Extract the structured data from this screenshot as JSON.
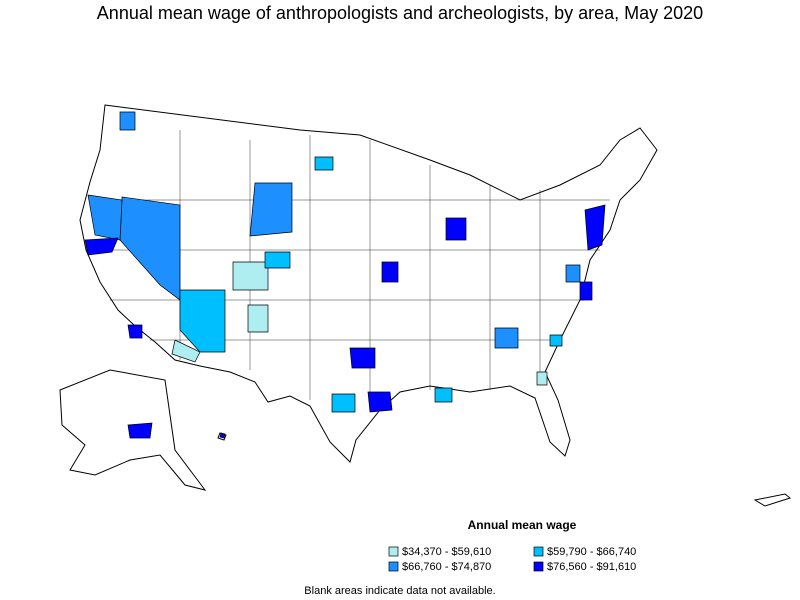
{
  "title": "Annual mean wage of anthropologists and archeologists, by area, May 2020",
  "legend": {
    "title": "Annual mean wage",
    "items": [
      {
        "label": "$34,370 - $59,610",
        "color": "#aeeef0"
      },
      {
        "label": "$59,790 - $66,740",
        "color": "#00bfff"
      },
      {
        "label": "$66,760 - $74,870",
        "color": "#1e8fff"
      },
      {
        "label": "$76,560 - $91,610",
        "color": "#0000ff"
      }
    ]
  },
  "note": "Blank areas indicate data not available."
}
